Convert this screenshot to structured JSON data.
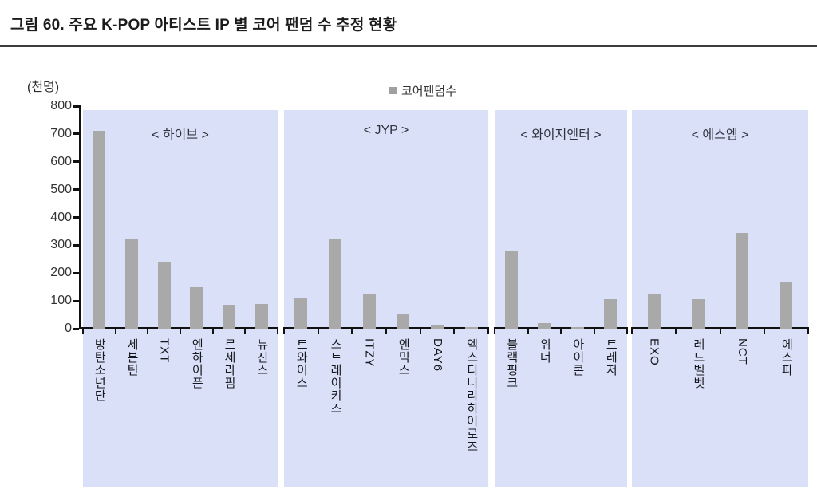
{
  "title": "그림 60. 주요 K-POP 아티스트 IP 별 코어 팬덤 수 추정 현황",
  "unit_label": "(천명)",
  "legend": {
    "label": "코어팬덤수",
    "marker_color": "#a0a0a0"
  },
  "colors": {
    "panel_background": "#dbe0f9",
    "bar": "#a9a9a9",
    "axis": "#111111",
    "title_text": "#1c1c1c"
  },
  "chart_data": {
    "type": "bar",
    "title": "주요 K-POP 아티스트 IP 별 코어 팬덤 수 추정 현황",
    "ylabel": "(천명)",
    "ylim": [
      0,
      800
    ],
    "yticks": [
      800,
      700,
      600,
      500,
      400,
      300,
      200,
      100,
      0
    ],
    "grid": false,
    "legend_entries": [
      "코어팬덤수"
    ],
    "legend_position": "top-center",
    "groups": [
      {
        "label": "< 하이브 >",
        "categories": [
          "방탄소년단",
          "세븐틴",
          "TXT",
          "엔하이픈",
          "르세라핌",
          "뉴진스"
        ],
        "values": [
          710,
          320,
          240,
          150,
          85,
          90
        ]
      },
      {
        "label": "< JYP >",
        "categories": [
          "트와이스",
          "스트레이키즈",
          "ITZY",
          "엔믹스",
          "DAY6",
          "엑스디너리히어로즈"
        ],
        "values": [
          110,
          320,
          125,
          55,
          15,
          5
        ]
      },
      {
        "label": "< 와이지엔터 >",
        "categories": [
          "블랙핑크",
          "위너",
          "아이콘",
          "트레저"
        ],
        "values": [
          280,
          20,
          5,
          105
        ]
      },
      {
        "label": "< 에스엠 >",
        "categories": [
          "EXO",
          "레드벨벳",
          "NCT",
          "에스파"
        ],
        "values": [
          125,
          105,
          345,
          170
        ]
      }
    ]
  }
}
